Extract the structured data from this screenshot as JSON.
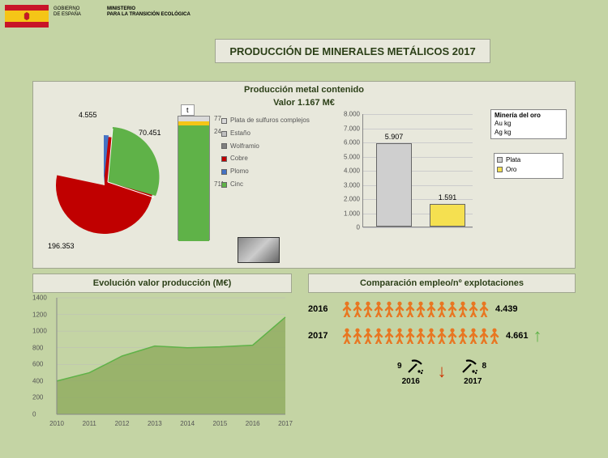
{
  "header": {
    "gov_line1": "GOBIERNO",
    "gov_line2": "DE ESPAÑA",
    "ministry_line1": "MINISTERIO",
    "ministry_line2": "PARA LA TRANSICIÓN ECOLÓGICA"
  },
  "title": "PRODUCCIÓN DE MINERALES METÁLICOS 2017",
  "main": {
    "subtitle": "Producción metal contenido",
    "valor": "Valor 1.167 M€"
  },
  "pie": {
    "labels": {
      "cobre": "196.353",
      "cinc": "70.451",
      "plomo": "4.555"
    },
    "colors": {
      "cobre": "#c00000",
      "cinc": "#5fb248",
      "plomo": "#4472c4"
    }
  },
  "stacked": {
    "unit": "t",
    "segments": [
      {
        "label": "77",
        "color": "#d9d9d9",
        "h": 6
      },
      {
        "label": "24",
        "color": "#f5c517",
        "h": 5
      },
      {
        "label": "711",
        "color": "#5fb248",
        "h": 143
      }
    ]
  },
  "legend1": [
    {
      "label": "Plata de sulfuros complejos",
      "color": "#d9d9d9"
    },
    {
      "label": "Estaño",
      "color": "#bfbfbf"
    },
    {
      "label": "Wolframio",
      "color": "#808080"
    },
    {
      "label": "Cobre",
      "color": "#c00000"
    },
    {
      "label": "Plomo",
      "color": "#4472c4"
    },
    {
      "label": "Cinc",
      "color": "#5fb248"
    }
  ],
  "bar": {
    "ymax": 8000,
    "ystep": 1000,
    "bars": [
      {
        "label": "5.907",
        "value": 5907,
        "color": "#cfcfcf"
      },
      {
        "label": "1.591",
        "value": 1591,
        "color": "#f5e050"
      }
    ]
  },
  "mineria": {
    "title": "Minería del oro",
    "line1": "Au kg",
    "line2": "Ag kg"
  },
  "legend2": [
    {
      "label": "Plata",
      "color": "#cfcfcf"
    },
    {
      "label": "Oro",
      "color": "#f5e050"
    }
  ],
  "evo": {
    "title": "Evolución valor producción (M€)",
    "ymax": 1400,
    "ystep": 200,
    "years": [
      2010,
      2011,
      2012,
      2013,
      2014,
      2015,
      2016,
      2017
    ],
    "values": [
      400,
      500,
      700,
      820,
      800,
      810,
      830,
      1167
    ],
    "fill": "#8ba858",
    "line": "#5fb248"
  },
  "comp": {
    "title": "Comparación empleo/nº explotaciones",
    "rows": [
      {
        "year": "2016",
        "count": 14,
        "value": "4.439",
        "color": "#e87722"
      },
      {
        "year": "2017",
        "count": 15,
        "value": "4.661",
        "color": "#e87722"
      }
    ],
    "explo": {
      "y2016": "9",
      "y2017": "8",
      "l2016": "2016",
      "l2017": "2017"
    }
  }
}
